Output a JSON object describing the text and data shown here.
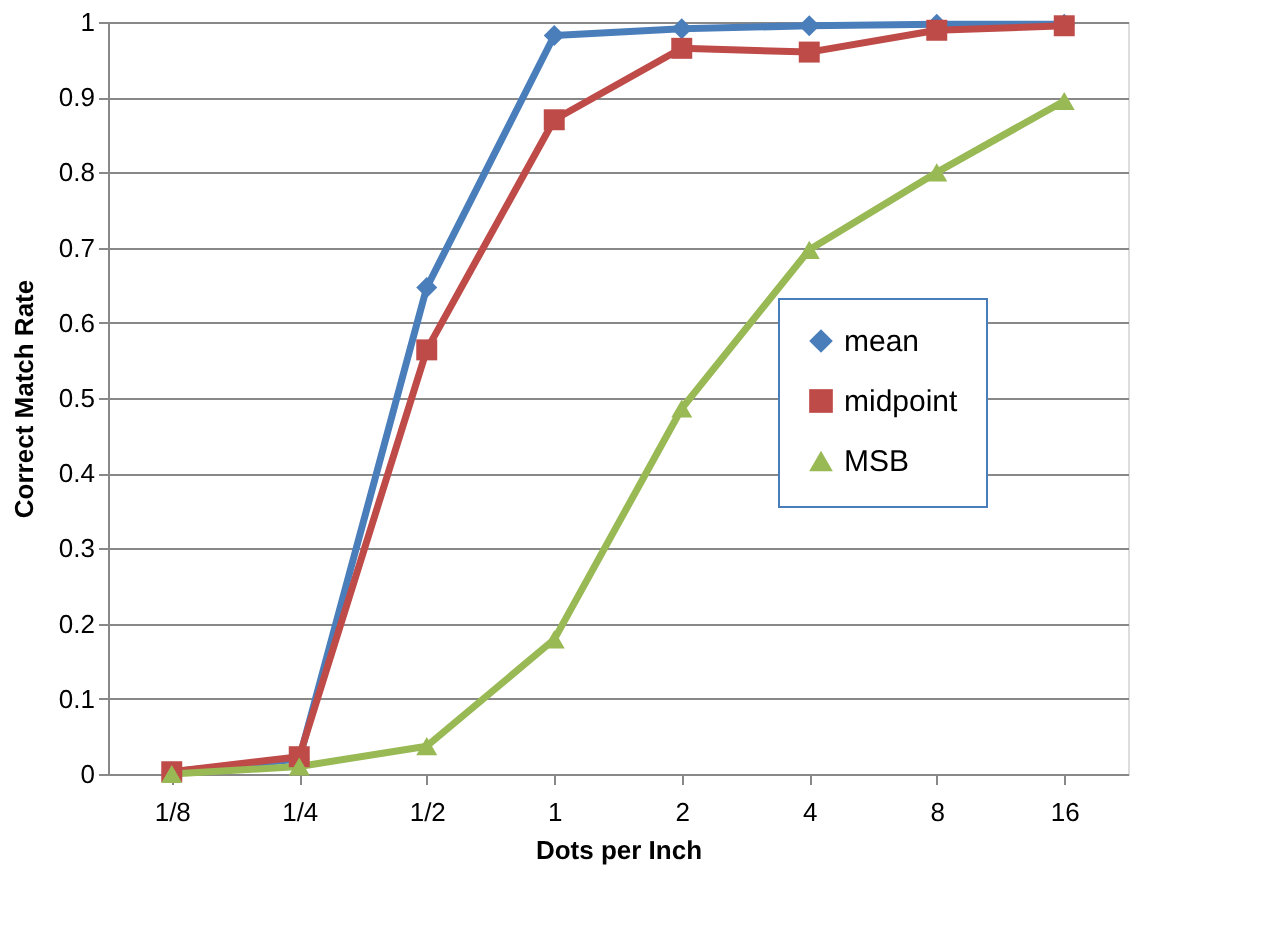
{
  "chart_data": {
    "type": "line",
    "xlabel": "Dots per Inch",
    "ylabel": "Correct Match Rate",
    "categories": [
      "1/8",
      "1/4",
      "1/2",
      "1",
      "2",
      "4",
      "8",
      "16"
    ],
    "series": [
      {
        "name": "mean",
        "color": "#4a7ebb",
        "marker": "diamond",
        "values": [
          0.003,
          0.02,
          0.647,
          0.982,
          0.991,
          0.995,
          0.997,
          0.997
        ]
      },
      {
        "name": "midpoint",
        "color": "#be4b48",
        "marker": "square",
        "values": [
          0.003,
          0.023,
          0.564,
          0.87,
          0.965,
          0.96,
          0.989,
          0.995
        ]
      },
      {
        "name": "MSB",
        "color": "#98b954",
        "marker": "triangle",
        "values": [
          0,
          0.01,
          0.037,
          0.179,
          0.486,
          0.697,
          0.8,
          0.895
        ]
      }
    ],
    "ylim": [
      0,
      1
    ],
    "yticks": [
      0,
      0.1,
      0.2,
      0.3,
      0.4,
      0.5,
      0.6,
      0.7,
      0.8,
      0.9,
      1
    ],
    "grid": "y",
    "legend": "right",
    "line_style": "solid"
  }
}
